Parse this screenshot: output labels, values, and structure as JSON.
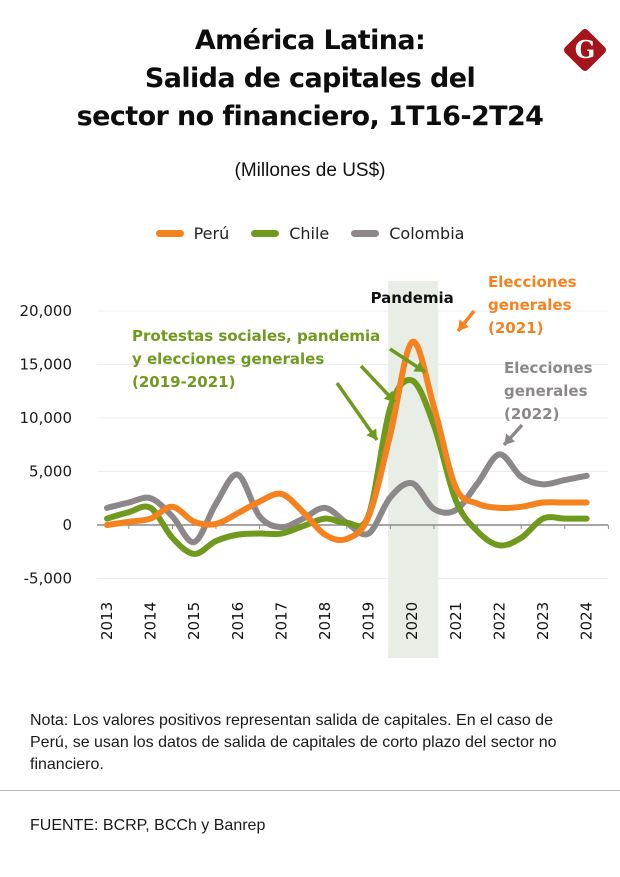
{
  "header": {
    "title_lines": [
      "América Latina:",
      "Salida de capitales del",
      "sector no financiero, 1T16-2T24"
    ],
    "subtitle": "(Millones de US$)",
    "logo_letter": "G",
    "logo_color": "#a3151b"
  },
  "legend": [
    {
      "label": "Perú",
      "color": "#f5821f"
    },
    {
      "label": "Chile",
      "color": "#6f9a1e"
    },
    {
      "label": "Colombia",
      "color": "#8c8789"
    }
  ],
  "chart_data": {
    "type": "line",
    "title": "América Latina: Salida de capitales del sector no financiero, 1T16-2T24",
    "subtitle": "(Millones de US$)",
    "xlabel": "",
    "ylabel": "Millones de US$",
    "categories": [
      "2013",
      "2014",
      "2015",
      "2016",
      "2017",
      "2018",
      "2019",
      "2020",
      "2021",
      "2022",
      "2023",
      "2024"
    ],
    "ylim": [
      -5000,
      20000
    ],
    "yticks": [
      20000,
      15000,
      10000,
      5000,
      0,
      -5000
    ],
    "ytick_labels": [
      "20,000",
      "15,000",
      "10,000",
      "5,000",
      "0",
      "-5,000"
    ],
    "grid": true,
    "legend_position": "top-center",
    "x": [
      0,
      0.5,
      1,
      1.5,
      2,
      2.5,
      3,
      3.5,
      4,
      4.5,
      5,
      5.5,
      6,
      6.5,
      7,
      7.5,
      8,
      8.5,
      9,
      9.5,
      10,
      10.5,
      11
    ],
    "series": [
      {
        "name": "Perú",
        "color": "#f5821f",
        "values": [
          0,
          300,
          600,
          1700,
          300,
          100,
          1100,
          2200,
          2900,
          1200,
          -900,
          -1300,
          800,
          8500,
          17100,
          11000,
          3500,
          2000,
          1600,
          1700,
          2100,
          2100,
          2100
        ]
      },
      {
        "name": "Chile",
        "color": "#6f9a1e",
        "values": [
          600,
          1200,
          1600,
          -1200,
          -2700,
          -1500,
          -900,
          -800,
          -800,
          -100,
          600,
          200,
          900,
          11000,
          13500,
          9300,
          2300,
          -600,
          -1900,
          -1200,
          600,
          600,
          600
        ]
      },
      {
        "name": "Colombia",
        "color": "#8c8789",
        "values": [
          1600,
          2100,
          2500,
          800,
          -1600,
          2000,
          4700,
          800,
          -200,
          600,
          1600,
          200,
          -800,
          2600,
          3900,
          1500,
          1400,
          3900,
          6600,
          4500,
          3800,
          4200,
          4600
        ]
      }
    ],
    "shaded_region": {
      "label": "Pandemia",
      "from": "2020",
      "color": "#e8ede6"
    },
    "annotations": [
      {
        "text_lines": [
          "Protestas sociales, pandemia",
          "y elecciones generales",
          "(2019-2021)"
        ],
        "color": "#6f9a1e",
        "series": "Chile"
      },
      {
        "text_lines": [
          "Elecciones",
          "generales",
          "(2021)"
        ],
        "color": "#f5821f",
        "series": "Perú"
      },
      {
        "text_lines": [
          "Elecciones",
          "generales",
          "(2022)"
        ],
        "color": "#8c8789",
        "series": "Colombia"
      }
    ]
  },
  "footer": {
    "note": "Nota: Los valores positivos representan salida de capitales. En el caso de Perú, se usan los datos de salida de capitales de corto plazo del sector no financiero.",
    "source": "FUENTE: BCRP, BCCh y Banrep"
  }
}
